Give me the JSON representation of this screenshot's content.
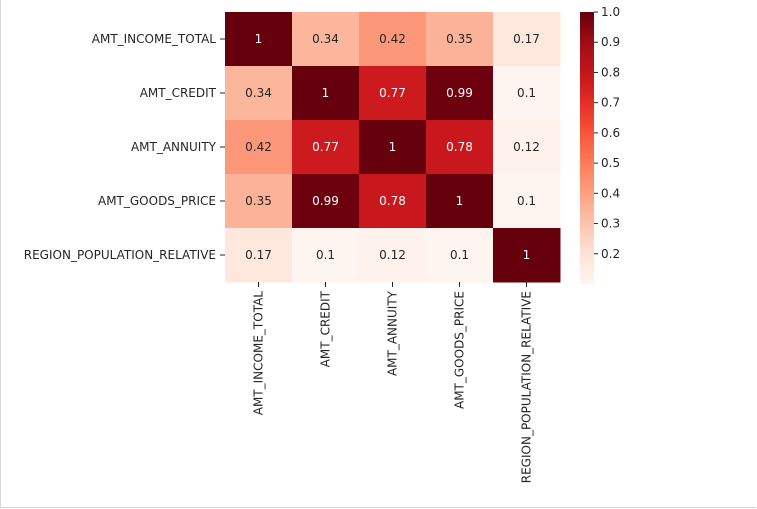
{
  "chart_data": {
    "type": "heatmap",
    "rows": [
      "AMT_INCOME_TOTAL",
      "AMT_CREDIT",
      "AMT_ANNUITY",
      "AMT_GOODS_PRICE",
      "REGION_POPULATION_RELATIVE"
    ],
    "columns": [
      "AMT_INCOME_TOTAL",
      "AMT_CREDIT",
      "AMT_ANNUITY",
      "AMT_GOODS_PRICE",
      "REGION_POPULATION_RELATIVE"
    ],
    "values": [
      [
        1,
        0.34,
        0.42,
        0.35,
        0.17
      ],
      [
        0.34,
        1,
        0.77,
        0.99,
        0.1
      ],
      [
        0.42,
        0.77,
        1,
        0.78,
        0.12
      ],
      [
        0.35,
        0.99,
        0.78,
        1,
        0.1
      ],
      [
        0.17,
        0.1,
        0.12,
        0.1,
        1
      ]
    ],
    "colormap": "Reds",
    "annotations": true,
    "colorbar": {
      "min": 0.1,
      "max": 1.0,
      "ticks": [
        0.2,
        0.3,
        0.4,
        0.5,
        0.6,
        0.7,
        0.8,
        0.9,
        1.0
      ],
      "tick_labels": [
        "0.2",
        "0.3",
        "0.4",
        "0.5",
        "0.6",
        "0.7",
        "0.8",
        "0.9",
        "1.0"
      ],
      "placement": "right"
    }
  }
}
